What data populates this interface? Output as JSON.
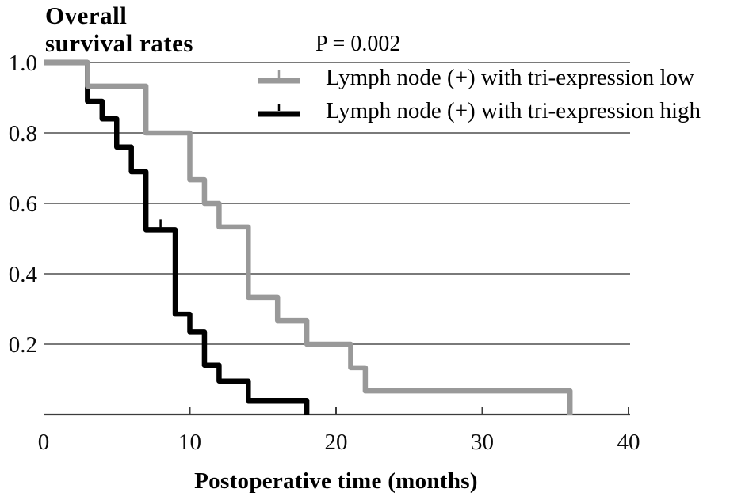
{
  "title": {
    "line1": "Overall",
    "line2": "survival rates"
  },
  "chart_data": {
    "type": "line",
    "variant": "kaplan-meier-step",
    "title": "Overall survival rates",
    "p_value": "P = 0.002",
    "xlabel": "Postoperative time (months)",
    "ylabel": "Overall survival rates",
    "xlim": [
      0,
      40
    ],
    "ylim": [
      0,
      1.0
    ],
    "grid": true,
    "legend_position": "top-right",
    "gridlines": [
      1.0,
      0.8,
      0.6,
      0.4,
      0.2
    ],
    "yticks": [
      {
        "value": 1.0,
        "label": "1.0"
      },
      {
        "value": 0.8,
        "label": "0.8"
      },
      {
        "value": 0.6,
        "label": "0.6"
      },
      {
        "value": 0.4,
        "label": "0.4"
      },
      {
        "value": 0.2,
        "label": "0.2"
      }
    ],
    "xticks": [
      {
        "value": 0,
        "label": "0",
        "tick": false
      },
      {
        "value": 10,
        "label": "10",
        "tick": true
      },
      {
        "value": 20,
        "label": "20",
        "tick": true
      },
      {
        "value": 30,
        "label": "30",
        "tick": true
      },
      {
        "value": 40,
        "label": "40",
        "tick": true
      }
    ],
    "colors": {
      "grid": "#4f4f4f",
      "axis": "#3c3c3c",
      "text": "#000000"
    },
    "series": [
      {
        "name": "Lymph node (+) with tri-expression low",
        "color": "#999999",
        "steps": [
          [
            0,
            1.0
          ],
          [
            3,
            0.933
          ],
          [
            7,
            0.8
          ],
          [
            10,
            0.667
          ],
          [
            11,
            0.6
          ],
          [
            12,
            0.533
          ],
          [
            14,
            0.333
          ],
          [
            16,
            0.267
          ],
          [
            18,
            0.2
          ],
          [
            21,
            0.133
          ],
          [
            22,
            0.067
          ],
          [
            36,
            0
          ]
        ],
        "censor_marks": []
      },
      {
        "name": "Lymph node (+) with tri-expression high",
        "color": "#000000",
        "steps": [
          [
            0,
            1.0
          ],
          [
            3,
            0.89
          ],
          [
            4,
            0.84
          ],
          [
            5,
            0.76
          ],
          [
            6,
            0.69
          ],
          [
            7,
            0.525
          ],
          [
            9,
            0.285
          ],
          [
            10,
            0.235
          ],
          [
            11,
            0.14
          ],
          [
            12,
            0.095
          ],
          [
            14,
            0.04
          ],
          [
            18,
            0
          ]
        ],
        "censor_marks": [
          [
            8,
            0.525
          ]
        ]
      }
    ]
  }
}
